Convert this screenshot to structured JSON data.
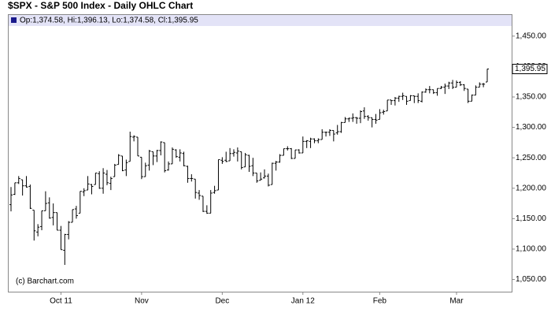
{
  "chart_data": {
    "type": "ohlc",
    "title": "$SPX - S&P 500 Index - Daily OHLC Chart",
    "legend_text": "Op:1,374.58, Hi:1,396.13, Lo:1,374.58, Cl:1,395.95",
    "last_price_label": "1,395.95",
    "credit": "(c) Barchart.com",
    "color": "#000000",
    "grid": false,
    "ylim": [
      1030,
      1464
    ],
    "yticks": [
      {
        "value": 1050,
        "label": "1,050.00"
      },
      {
        "value": 1100,
        "label": "1,100.00"
      },
      {
        "value": 1150,
        "label": "1,150.00"
      },
      {
        "value": 1200,
        "label": "1,200.00"
      },
      {
        "value": 1250,
        "label": "1,250.00"
      },
      {
        "value": 1300,
        "label": "1,300.00"
      },
      {
        "value": 1350,
        "label": "1,350.00"
      },
      {
        "value": 1400,
        "label": "1,400.00"
      },
      {
        "value": 1450,
        "label": "1,450.00"
      }
    ],
    "categories": [
      null,
      null,
      null,
      null,
      null,
      null,
      null,
      null,
      null,
      null,
      null,
      null,
      null,
      "Oct 11",
      null,
      null,
      null,
      null,
      null,
      null,
      null,
      null,
      null,
      null,
      null,
      null,
      null,
      null,
      null,
      null,
      null,
      null,
      null,
      null,
      "Nov",
      null,
      null,
      null,
      null,
      null,
      null,
      null,
      null,
      null,
      null,
      null,
      null,
      null,
      null,
      null,
      null,
      null,
      null,
      null,
      null,
      "Dec",
      null,
      null,
      null,
      null,
      null,
      null,
      null,
      null,
      null,
      null,
      null,
      null,
      null,
      null,
      null,
      null,
      null,
      null,
      null,
      null,
      "Jan 12",
      null,
      null,
      null,
      null,
      null,
      null,
      null,
      null,
      null,
      null,
      null,
      null,
      null,
      null,
      null,
      null,
      null,
      null,
      null,
      "Feb",
      null,
      null,
      null,
      null,
      null,
      null,
      null,
      null,
      null,
      null,
      null,
      null,
      null,
      null,
      null,
      null,
      null,
      null,
      null,
      "Mar",
      null,
      null,
      null,
      null,
      null,
      null,
      null,
      null
    ],
    "ohlc": [
      [
        1173,
        1202,
        1162,
        1189
      ],
      [
        1190,
        1209,
        1189,
        1209
      ],
      [
        1209,
        1220,
        1207,
        1216
      ],
      [
        1214,
        1214,
        1188,
        1204
      ],
      [
        1204,
        1220,
        1201,
        1202
      ],
      [
        1203,
        1206,
        1166,
        1167
      ],
      [
        1164,
        1164,
        1114,
        1130
      ],
      [
        1128,
        1141,
        1121,
        1136
      ],
      [
        1137,
        1163,
        1131,
        1163
      ],
      [
        1163,
        1195,
        1163,
        1175
      ],
      [
        1176,
        1185,
        1150,
        1151
      ],
      [
        1152,
        1175,
        1139,
        1160
      ],
      [
        1160,
        1160,
        1131,
        1131
      ],
      [
        1131,
        1138,
        1099,
        1099
      ],
      [
        1098,
        1125,
        1074,
        1124
      ],
      [
        1124,
        1146,
        1116,
        1144
      ],
      [
        1144,
        1165,
        1144,
        1165
      ],
      [
        1166,
        1171,
        1150,
        1155
      ],
      [
        1159,
        1195,
        1159,
        1195
      ],
      [
        1194,
        1200,
        1187,
        1196
      ],
      [
        1197,
        1220,
        1197,
        1207
      ],
      [
        1206,
        1207,
        1190,
        1203
      ],
      [
        1206,
        1225,
        1206,
        1225
      ],
      [
        1224,
        1228,
        1199,
        1200
      ],
      [
        1200,
        1233,
        1191,
        1225
      ],
      [
        1223,
        1230,
        1205,
        1209
      ],
      [
        1208,
        1219,
        1197,
        1216
      ],
      [
        1219,
        1240,
        1219,
        1238
      ],
      [
        1239,
        1256,
        1239,
        1254
      ],
      [
        1253,
        1253,
        1228,
        1229
      ],
      [
        1230,
        1247,
        1220,
        1242
      ],
      [
        1244,
        1293,
        1244,
        1285
      ],
      [
        1284,
        1287,
        1277,
        1285
      ],
      [
        1284,
        1284,
        1253,
        1253
      ],
      [
        1251,
        1251,
        1215,
        1219
      ],
      [
        1219,
        1242,
        1219,
        1237
      ],
      [
        1238,
        1263,
        1229,
        1261
      ],
      [
        1260,
        1260,
        1238,
        1253
      ],
      [
        1253,
        1263,
        1243,
        1262
      ],
      [
        1262,
        1277,
        1254,
        1276
      ],
      [
        1275,
        1275,
        1226,
        1229
      ],
      [
        1230,
        1244,
        1229,
        1240
      ],
      [
        1240,
        1267,
        1240,
        1264
      ],
      [
        1263,
        1264,
        1250,
        1252
      ],
      [
        1251,
        1264,
        1244,
        1258
      ],
      [
        1257,
        1260,
        1236,
        1237
      ],
      [
        1236,
        1237,
        1209,
        1216
      ],
      [
        1216,
        1223,
        1211,
        1216
      ],
      [
        1215,
        1215,
        1183,
        1193
      ],
      [
        1192,
        1197,
        1181,
        1188
      ],
      [
        1187,
        1187,
        1161,
        1162
      ],
      [
        1162,
        1172,
        1158,
        1159
      ],
      [
        1159,
        1197,
        1159,
        1192
      ],
      [
        1193,
        1204,
        1191,
        1196
      ],
      [
        1197,
        1247,
        1197,
        1247
      ],
      [
        1246,
        1251,
        1240,
        1244
      ],
      [
        1246,
        1260,
        1243,
        1244
      ],
      [
        1245,
        1266,
        1245,
        1257
      ],
      [
        1257,
        1264,
        1252,
        1259
      ],
      [
        1258,
        1267,
        1244,
        1261
      ],
      [
        1260,
        1260,
        1231,
        1234
      ],
      [
        1235,
        1258,
        1235,
        1255
      ],
      [
        1254,
        1255,
        1227,
        1236
      ],
      [
        1237,
        1250,
        1220,
        1225
      ],
      [
        1225,
        1225,
        1209,
        1212
      ],
      [
        1213,
        1226,
        1213,
        1215
      ],
      [
        1217,
        1231,
        1216,
        1220
      ],
      [
        1220,
        1224,
        1203,
        1205
      ],
      [
        1206,
        1242,
        1206,
        1241
      ],
      [
        1241,
        1245,
        1229,
        1243
      ],
      [
        1243,
        1256,
        1242,
        1254
      ],
      [
        1254,
        1265,
        1254,
        1265
      ],
      [
        1265,
        1269,
        1262,
        1265
      ],
      [
        1265,
        1266,
        1248,
        1249
      ],
      [
        1249,
        1263,
        1249,
        1263
      ],
      [
        1263,
        1264,
        1257,
        1258
      ],
      [
        1258,
        1285,
        1258,
        1277
      ],
      [
        1277,
        1279,
        1266,
        1278
      ],
      [
        1277,
        1283,
        1266,
        1281
      ],
      [
        1281,
        1282,
        1274,
        1278
      ],
      [
        1278,
        1282,
        1274,
        1280
      ],
      [
        1280,
        1297,
        1280,
        1292
      ],
      [
        1292,
        1293,
        1285,
        1292
      ],
      [
        1292,
        1297,
        1286,
        1295
      ],
      [
        1295,
        1295,
        1277,
        1289
      ],
      [
        1291,
        1304,
        1288,
        1293
      ],
      [
        1293,
        1309,
        1291,
        1308
      ],
      [
        1308,
        1317,
        1308,
        1314
      ],
      [
        1314,
        1316,
        1309,
        1315
      ],
      [
        1315,
        1323,
        1309,
        1316
      ],
      [
        1316,
        1317,
        1306,
        1315
      ],
      [
        1315,
        1328,
        1307,
        1326
      ],
      [
        1327,
        1333,
        1314,
        1318
      ],
      [
        1318,
        1320,
        1311,
        1316
      ],
      [
        1316,
        1316,
        1300,
        1313
      ],
      [
        1313,
        1322,
        1306,
        1312
      ],
      [
        1313,
        1330,
        1313,
        1324
      ],
      [
        1325,
        1329,
        1321,
        1326
      ],
      [
        1327,
        1345,
        1327,
        1345
      ],
      [
        1345,
        1345,
        1337,
        1344
      ],
      [
        1344,
        1350,
        1336,
        1348
      ],
      [
        1348,
        1352,
        1342,
        1351
      ],
      [
        1351,
        1357,
        1345,
        1352
      ],
      [
        1351,
        1351,
        1337,
        1343
      ],
      [
        1344,
        1353,
        1344,
        1352
      ],
      [
        1352,
        1352,
        1340,
        1351
      ],
      [
        1351,
        1356,
        1340,
        1344
      ],
      [
        1343,
        1359,
        1341,
        1358
      ],
      [
        1358,
        1364,
        1357,
        1362
      ],
      [
        1362,
        1368,
        1356,
        1362
      ],
      [
        1362,
        1362,
        1355,
        1357
      ],
      [
        1357,
        1364,
        1352,
        1364
      ],
      [
        1364,
        1368,
        1363,
        1366
      ],
      [
        1366,
        1372,
        1355,
        1368
      ],
      [
        1368,
        1375,
        1363,
        1373
      ],
      [
        1373,
        1378,
        1363,
        1366
      ],
      [
        1366,
        1377,
        1366,
        1374
      ],
      [
        1374,
        1376,
        1368,
        1370
      ],
      [
        1370,
        1371,
        1360,
        1364
      ],
      [
        1363,
        1363,
        1340,
        1343
      ],
      [
        1343,
        1354,
        1343,
        1353
      ],
      [
        1353,
        1369,
        1353,
        1366
      ],
      [
        1366,
        1374,
        1366,
        1371
      ],
      [
        1371,
        1373,
        1366,
        1371
      ],
      [
        1374.58,
        1396.13,
        1374.58,
        1395.95
      ]
    ]
  }
}
